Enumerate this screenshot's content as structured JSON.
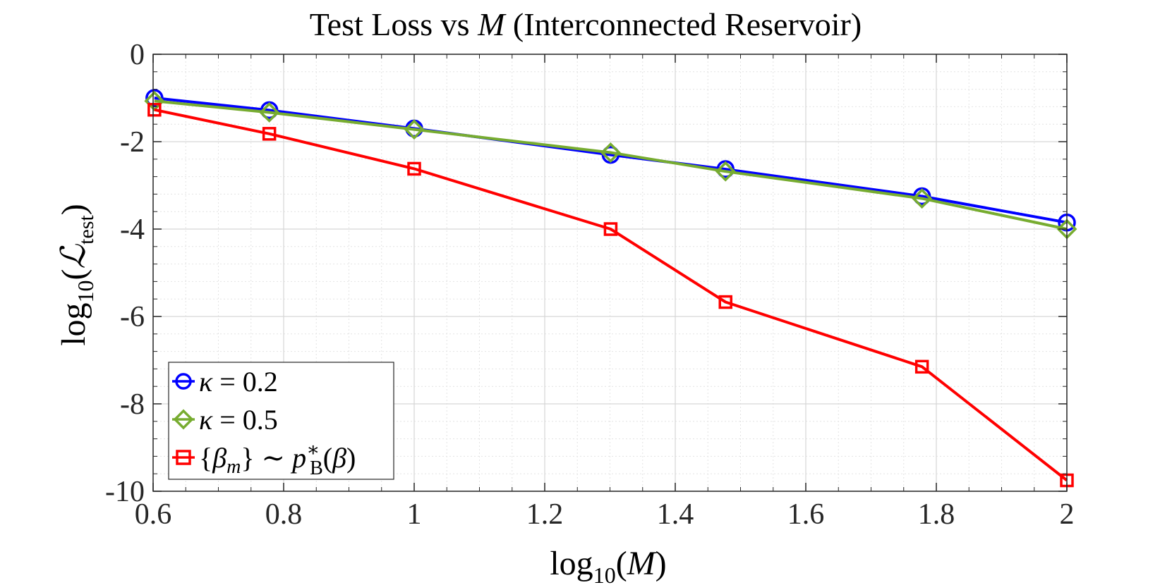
{
  "chart_data": {
    "type": "line",
    "title": "Test Loss vs M (Interconnected Reservoir)",
    "title_parts": {
      "prefix": "Test Loss vs ",
      "var": "M",
      "suffix": " (Interconnected Reservoir)"
    },
    "xlabel": "log10(M)",
    "ylabel": "log10(L_test)",
    "xlim": [
      0.6,
      2.0
    ],
    "ylim": [
      -10,
      0
    ],
    "xticks": [
      0.6,
      0.8,
      1.0,
      1.2,
      1.4,
      1.6,
      1.8,
      2.0
    ],
    "xtick_labels": [
      "0.6",
      "0.8",
      "1",
      "1.2",
      "1.4",
      "1.6",
      "1.8",
      "2"
    ],
    "yticks": [
      0,
      -2,
      -4,
      -6,
      -8,
      -10
    ],
    "ytick_labels": [
      "0",
      "-2",
      "-4",
      "-6",
      "-8",
      "-10"
    ],
    "grid": true,
    "minor_grid": true,
    "legend_position": "bottom-left",
    "x": [
      0.602,
      0.778,
      1.0,
      1.301,
      1.477,
      1.778,
      2.0
    ],
    "series": [
      {
        "name": "κ = 0.2",
        "color": "#0000ff",
        "marker": "circle",
        "values": [
          -1.0,
          -1.28,
          -1.7,
          -2.3,
          -2.63,
          -3.25,
          -3.85
        ]
      },
      {
        "name": "κ = 0.5",
        "color": "#77ac30",
        "marker": "diamond",
        "values": [
          -1.07,
          -1.33,
          -1.72,
          -2.25,
          -2.68,
          -3.3,
          -4.0
        ]
      },
      {
        "name": "{β_m} ~ p*_B(β)",
        "color": "#ff0000",
        "marker": "square",
        "values": [
          -1.27,
          -1.82,
          -2.62,
          -4.0,
          -5.67,
          -7.15,
          -9.75
        ]
      }
    ]
  }
}
